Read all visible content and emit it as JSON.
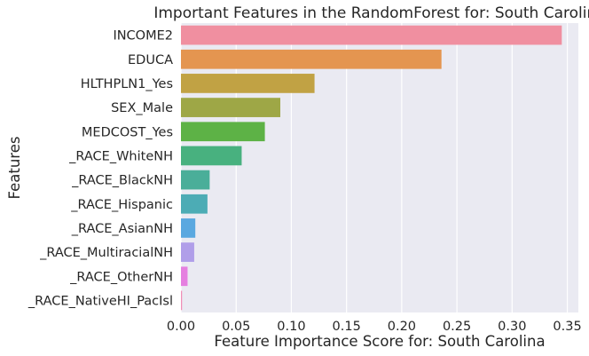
{
  "chart_data": {
    "type": "bar",
    "orientation": "horizontal",
    "title": "Important Features in the RandomForest for: South Carolina",
    "xlabel": "Feature Importance Score for: South Carolina",
    "ylabel": "Features",
    "xlim": [
      0,
      0.36
    ],
    "xticks": [
      "0.00",
      "0.05",
      "0.10",
      "0.15",
      "0.20",
      "0.25",
      "0.30",
      "0.35"
    ],
    "grid": true,
    "categories": [
      "INCOME2",
      "EDUCA",
      "HLTHPLN1_Yes",
      "SEX_Male",
      "MEDCOST_Yes",
      "_RACE_WhiteNH",
      "_RACE_BlackNH",
      "_RACE_Hispanic",
      "_RACE_AsianNH",
      "_RACE_MultiracialNH",
      "_RACE_OtherNH",
      "_RACE_NativeHI_PacIsl"
    ],
    "values": [
      0.345,
      0.236,
      0.121,
      0.09,
      0.076,
      0.055,
      0.026,
      0.024,
      0.013,
      0.012,
      0.006,
      0.001
    ],
    "colors": [
      "#f08fa0",
      "#e49550",
      "#c1a244",
      "#9ea746",
      "#5db246",
      "#48b17f",
      "#4aae99",
      "#4cacb5",
      "#5aa8e0",
      "#b09ee9",
      "#e57fe0",
      "#f08fb7"
    ],
    "background": "#eaeaf2"
  }
}
